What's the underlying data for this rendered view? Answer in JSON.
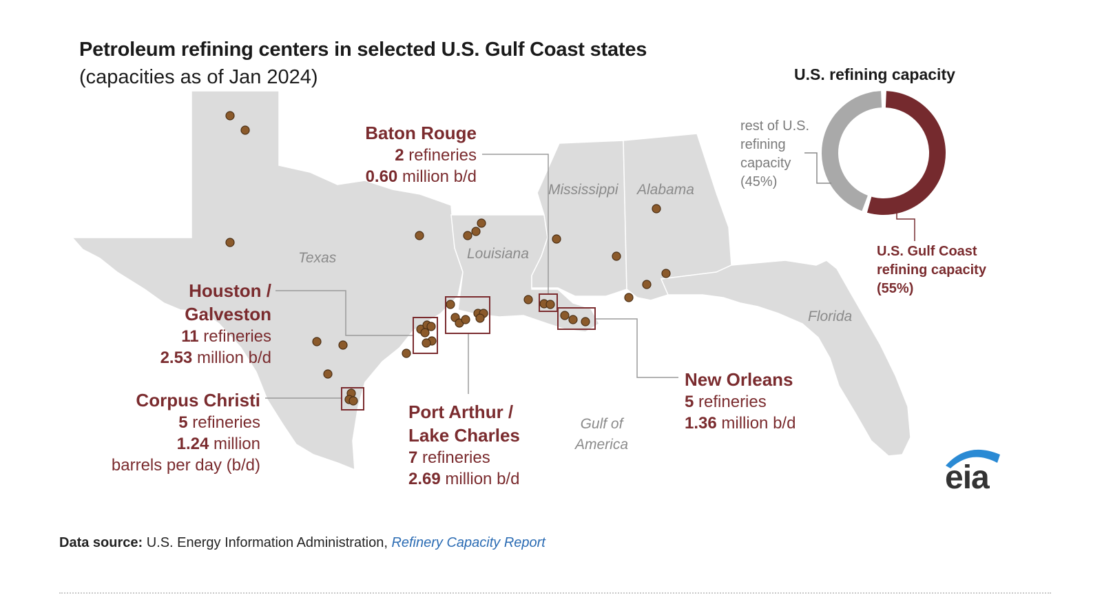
{
  "title": "Petroleum refining centers in selected U.S. Gulf Coast states",
  "subtitle": "(capacities as of Jan 2024)",
  "states": [
    "Texas",
    "Louisiana",
    "Mississippi",
    "Alabama",
    "Florida"
  ],
  "gulf_label": [
    "Gulf of",
    "America"
  ],
  "centers": [
    {
      "name": [
        "Baton Rouge"
      ],
      "count": "2",
      "count_suffix": " refineries",
      "capacity": "0.60",
      "capacity_suffix": " million b/d"
    },
    {
      "name": [
        "Houston /",
        "Galveston"
      ],
      "count": "11",
      "count_suffix": " refineries",
      "capacity": "2.53",
      "capacity_suffix": " million b/d"
    },
    {
      "name": [
        "Corpus Christi"
      ],
      "count": "5",
      "count_suffix": " refineries",
      "capacity": "1.24",
      "capacity_suffix": " million",
      "capacity_line2": "barrels per day (b/d)"
    },
    {
      "name": [
        "Port Arthur /",
        "Lake Charles"
      ],
      "count": "7",
      "count_suffix": " refineries",
      "capacity": "2.69",
      "capacity_suffix": " million b/d"
    },
    {
      "name": [
        "New Orleans"
      ],
      "count": "5",
      "count_suffix": " refineries",
      "capacity": "1.36",
      "capacity_suffix": " million b/d"
    }
  ],
  "donut": {
    "title": "U.S. refining capacity",
    "rest_label": [
      "rest of U.S.",
      "refining",
      "capacity",
      "(45%)"
    ],
    "gulf_label": [
      "U.S. Gulf Coast",
      "refining capacity",
      "(55%)"
    ],
    "gulf_share": 55,
    "rest_share": 45,
    "gulf_color": "#752a2e",
    "rest_color": "#a9a9a9"
  },
  "colors": {
    "map_fill": "#dcdcdc",
    "refinery_dot": "#8b5a2b",
    "callout": "#7a2b2e",
    "eia_arc": "#2a8ad4"
  },
  "source": {
    "label": "Data source:",
    "text": " U.S. Energy Information Administration, ",
    "link": "Refinery Capacity Report"
  },
  "logo": {
    "text": "eia"
  }
}
